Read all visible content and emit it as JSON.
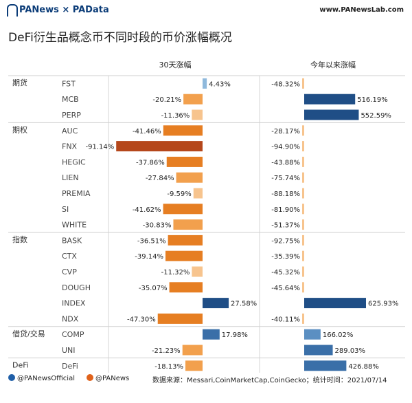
{
  "header": {
    "brand": "PANews × PAData",
    "site": "www.PANewsLab.com"
  },
  "chart_title": "DeFi衍生品概念币不同时段的币价涨幅概况",
  "column_headers": [
    "30天涨幅",
    "今年以来涨幅"
  ],
  "chart_data": {
    "type": "bar",
    "title": "DeFi衍生品概念币不同时段的币价涨幅概况",
    "groups": [
      {
        "name": "期货",
        "items": [
          "FST",
          "MCB",
          "PERP"
        ]
      },
      {
        "name": "期权",
        "items": [
          "AUC",
          "FNX",
          "HEGIC",
          "LIEN",
          "PREMIA",
          "SI",
          "WHITE"
        ]
      },
      {
        "name": "指数",
        "items": [
          "BASK",
          "CTX",
          "CVP",
          "DOUGH",
          "INDEX",
          "NDX"
        ]
      },
      {
        "name": "借贷/交易",
        "items": [
          "COMP",
          "UNI"
        ]
      },
      {
        "name": "DeFi",
        "items": [
          "DeFi"
        ]
      }
    ],
    "categories": [
      "FST",
      "MCB",
      "PERP",
      "AUC",
      "FNX",
      "HEGIC",
      "LIEN",
      "PREMIA",
      "SI",
      "WHITE",
      "BASK",
      "CTX",
      "CVP",
      "DOUGH",
      "INDEX",
      "NDX",
      "COMP",
      "UNI",
      "DeFi"
    ],
    "series": [
      {
        "name": "30天涨幅",
        "values": [
          4.43,
          -20.21,
          -11.36,
          -41.46,
          -91.14,
          -37.86,
          -27.84,
          -9.59,
          -41.62,
          -30.83,
          -36.51,
          -39.14,
          -11.32,
          -35.07,
          27.58,
          -47.3,
          17.98,
          -21.23,
          -18.13
        ]
      },
      {
        "name": "今年以来涨幅",
        "values": [
          -48.32,
          516.19,
          552.59,
          -28.17,
          -94.9,
          -43.88,
          -75.74,
          -88.18,
          -81.9,
          -51.37,
          -92.75,
          -35.39,
          -45.32,
          -45.64,
          625.93,
          -40.11,
          166.02,
          289.03,
          426.88
        ]
      }
    ],
    "labels_30d": [
      "4.43%",
      "-20.21%",
      "-11.36%",
      "-41.46%",
      "-91.14%",
      "-37.86%",
      "-27.84%",
      "-9.59%",
      "-41.62%",
      "-30.83%",
      "-36.51%",
      "-39.14%",
      "-11.32%",
      "-35.07%",
      "27.58%",
      "-47.30%",
      "17.98%",
      "-21.23%",
      "-18.13%"
    ],
    "labels_ytd": [
      "-48.32%",
      "516.19%",
      "552.59%",
      "-28.17%",
      "-94.90%",
      "-43.88%",
      "-75.74%",
      "-88.18%",
      "-81.90%",
      "-51.37%",
      "-92.75%",
      "-35.39%",
      "-45.32%",
      "-45.64%",
      "625.93%",
      "-40.11%",
      "166.02%",
      "289.03%",
      "426.88%"
    ],
    "colors": {
      "neg_light": "#f7c48e",
      "neg_mid": "#f2a04d",
      "neg_dark": "#e67e22",
      "neg_darkest": "#b5471b",
      "pos_light": "#8fb9dc",
      "pos_mid": "#5b8fc2",
      "pos_dark": "#3a6fa8",
      "pos_darkest": "#1f4e86"
    }
  },
  "footer": {
    "weibo": "@PANewsOfficial",
    "wechat": "@PANews",
    "source": "数据来源：Messari,CoinMarketCap,CoinGecko；统计时间：2021/07/14"
  }
}
